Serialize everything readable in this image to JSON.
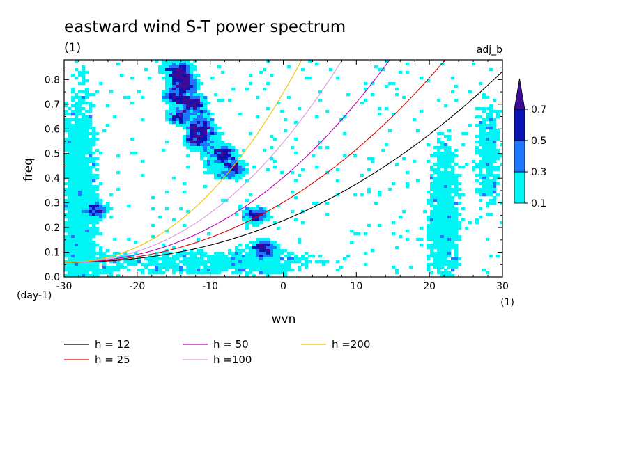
{
  "chart_data": {
    "type": "heatmap",
    "title": "eastward wind S-T power spectrum",
    "subtitle": "(1)",
    "corner_label": "adj_b",
    "xlabel": "wvn",
    "ylabel": "freq",
    "x_unit": "(1)",
    "y_unit": "(day-1)",
    "xlim": [
      -30,
      30
    ],
    "ylim": [
      0,
      0.88
    ],
    "x_ticks": [
      -30,
      -20,
      -10,
      0,
      10,
      20,
      30
    ],
    "x_tick_labels": [
      "-30",
      "-20",
      "-10",
      "0",
      "10",
      "20",
      "30"
    ],
    "y_ticks": [
      0,
      0.1,
      0.2,
      0.3,
      0.4,
      0.5,
      0.6,
      0.7,
      0.8
    ],
    "y_tick_labels": [
      "0.0",
      "0.1",
      "0.2",
      "0.3",
      "0.4",
      "0.5",
      "0.6",
      "0.7",
      "0.8"
    ],
    "colorbar": {
      "levels": [
        0.1,
        0.3,
        0.5,
        0.7
      ],
      "labels": [
        "0.1",
        "0.3",
        "0.5",
        "0.7"
      ],
      "colors": [
        "#00f5f5",
        "#1e78ff",
        "#0a14b4",
        "#3c0c96"
      ],
      "extend": "max"
    },
    "contour_blobs": [
      {
        "x": -13.5,
        "y": 0.78,
        "level": 3
      },
      {
        "x": -14,
        "y": 0.83,
        "level": 3
      },
      {
        "x": -12.5,
        "y": 0.7,
        "level": 3
      },
      {
        "x": -11.5,
        "y": 0.6,
        "level": 3
      },
      {
        "x": -2.5,
        "y": 0.115,
        "level": 3
      },
      {
        "x": -3.5,
        "y": 0.25,
        "level": 3
      },
      {
        "x": -25.5,
        "y": 0.27,
        "level": 2
      },
      {
        "x": -6.5,
        "y": 0.44,
        "level": 2
      },
      {
        "x": -8,
        "y": 0.5,
        "level": 2
      },
      {
        "x": -14.5,
        "y": 0.65,
        "level": 2
      },
      {
        "x": -15,
        "y": 0.73,
        "level": 2
      },
      {
        "x": -12,
        "y": 0.55,
        "level": 2
      }
    ],
    "series": [
      {
        "name": "h = 12",
        "color": "#000000",
        "h": 12
      },
      {
        "name": "h = 25",
        "color": "#e00000",
        "h": 25
      },
      {
        "name": "h = 50",
        "color": "#c000b4",
        "h": 50
      },
      {
        "name": "h =100",
        "color": "#d896dc",
        "h": 100
      },
      {
        "name": "h =200",
        "color": "#f0c000",
        "h": 200
      }
    ]
  }
}
